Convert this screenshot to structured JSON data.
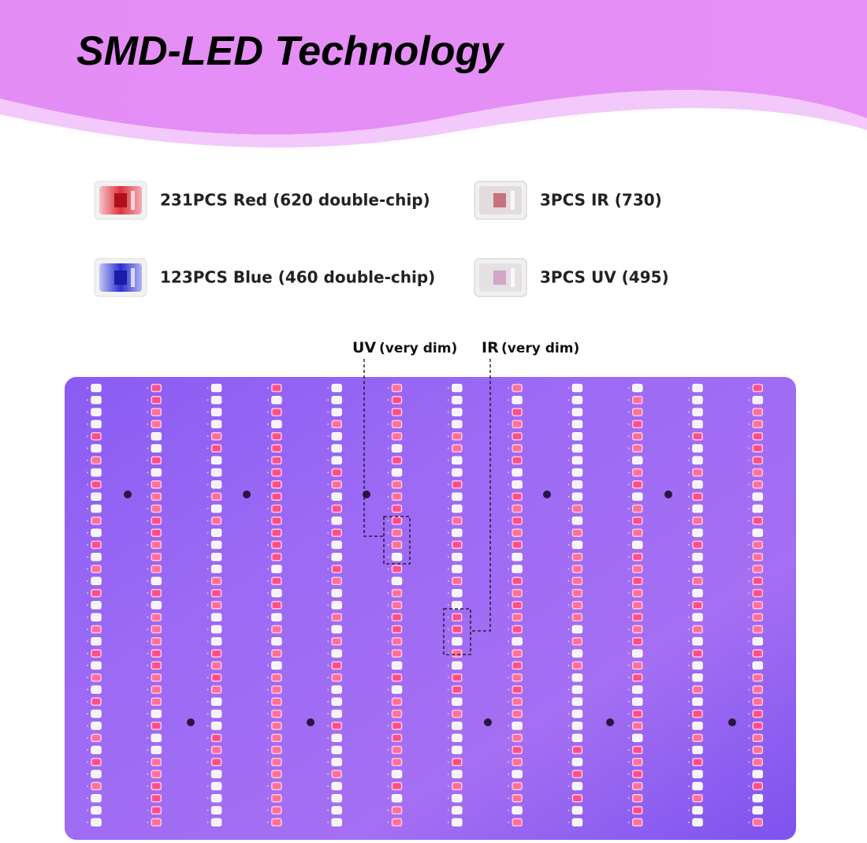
{
  "header": {
    "title": "SMD-LED Technology"
  },
  "legend": [
    {
      "label": "231PCS Red (620 double-chip)"
    },
    {
      "label": "3PCS IR (730)"
    },
    {
      "label": "123PCS Blue (460 double-chip)"
    },
    {
      "label": "3PCS UV (495)"
    }
  ],
  "annotations": [
    {
      "label": "UV",
      "note": "(very dim)"
    },
    {
      "label": "IR",
      "note": "(very dim)"
    }
  ]
}
